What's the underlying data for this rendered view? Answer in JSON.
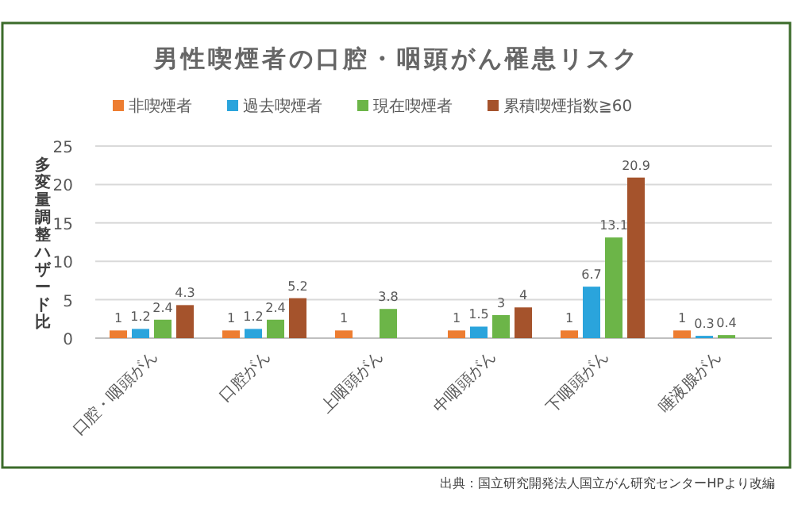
{
  "chart_data": {
    "type": "bar",
    "title": "男性喫煙者の口腔・咽頭がん罹患リスク",
    "categories": [
      "口腔・咽頭がん",
      "口腔がん",
      "上咽頭がん",
      "中咽頭がん",
      "下咽頭がん",
      "唾液腺がん"
    ],
    "series": [
      {
        "name": "非喫煙者",
        "color": "#ed7d31",
        "values": [
          1,
          1,
          1,
          1,
          1,
          1
        ]
      },
      {
        "name": "過去喫煙者",
        "color": "#2aa4dc",
        "values": [
          1.2,
          1.2,
          null,
          1.5,
          6.7,
          0.3
        ]
      },
      {
        "name": "現在喫煙者",
        "color": "#6cb548",
        "values": [
          2.4,
          2.4,
          3.8,
          3,
          13.1,
          0.4
        ]
      },
      {
        "name": "累積喫煙指数≧60",
        "color": "#a5532c",
        "values": [
          4.3,
          5.2,
          null,
          4,
          20.9,
          null
        ]
      }
    ],
    "ylabel": "多変量調整ハザード比",
    "ylim": [
      0,
      25
    ],
    "yticks": [
      0,
      5,
      10,
      15,
      20,
      25
    ],
    "grid": "y",
    "legend": "top",
    "data_labels": true,
    "annotations": [
      "出典：国立研究開発法人国立がん研究センターHPより改編"
    ]
  }
}
